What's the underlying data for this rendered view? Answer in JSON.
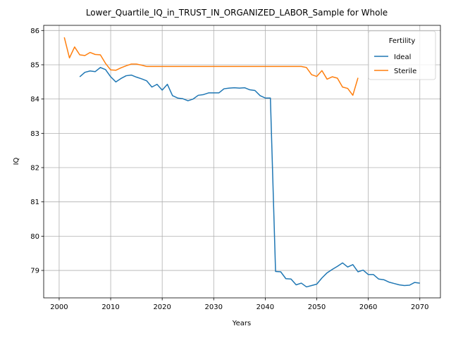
{
  "chart_data": {
    "type": "line",
    "title": "Lower_Quartile_IQ_in_TRUST_IN_ORGANIZED_LABOR_Sample for Whole",
    "xlabel": "Years",
    "ylabel": "IQ",
    "xlim": [
      1997,
      2074
    ],
    "ylim": [
      78.2,
      86.15
    ],
    "xticks": [
      2000,
      2010,
      2020,
      2030,
      2040,
      2050,
      2060,
      2070
    ],
    "yticks": [
      79,
      80,
      81,
      82,
      83,
      84,
      85,
      86
    ],
    "grid": true,
    "legend": {
      "title": "Fertility",
      "placement": "upper right"
    },
    "series": [
      {
        "name": "Ideal",
        "color": "#1f77b4",
        "x": [
          2004,
          2005,
          2006,
          2007,
          2008,
          2009,
          2010,
          2011,
          2012,
          2013,
          2014,
          2015,
          2016,
          2017,
          2018,
          2019,
          2020,
          2021,
          2022,
          2023,
          2024,
          2025,
          2026,
          2027,
          2028,
          2029,
          2030,
          2031,
          2032,
          2033,
          2034,
          2035,
          2036,
          2037,
          2038,
          2039,
          2040,
          2041,
          2042,
          2043,
          2044,
          2045,
          2046,
          2047,
          2048,
          2049,
          2050,
          2051,
          2052,
          2053,
          2054,
          2055,
          2056,
          2057,
          2058,
          2059,
          2060,
          2061,
          2062,
          2063,
          2064,
          2065,
          2066,
          2067,
          2068,
          2069,
          2070
        ],
        "y": [
          84.65,
          84.78,
          84.82,
          84.8,
          84.92,
          84.86,
          84.65,
          84.5,
          84.6,
          84.68,
          84.7,
          84.64,
          84.59,
          84.53,
          84.35,
          84.43,
          84.26,
          84.43,
          84.1,
          84.03,
          84.01,
          83.95,
          84.0,
          84.11,
          84.13,
          84.18,
          84.18,
          84.18,
          84.3,
          84.32,
          84.33,
          84.32,
          84.33,
          84.27,
          84.25,
          84.1,
          84.03,
          84.03,
          78.97,
          78.96,
          78.76,
          78.75,
          78.58,
          78.63,
          78.52,
          78.56,
          78.6,
          78.78,
          78.93,
          79.03,
          79.12,
          79.22,
          79.1,
          79.17,
          78.96,
          79.01,
          78.88,
          78.88,
          78.75,
          78.73,
          78.66,
          78.62,
          78.58,
          78.56,
          78.57,
          78.65,
          78.63
        ]
      },
      {
        "name": "Sterile",
        "color": "#ff7f0e",
        "x": [
          2001,
          2002,
          2003,
          2004,
          2005,
          2006,
          2007,
          2008,
          2009,
          2010,
          2011,
          2012,
          2013,
          2014,
          2015,
          2016,
          2017,
          2018,
          2019,
          2020,
          2021,
          2022,
          2023,
          2024,
          2025,
          2026,
          2027,
          2028,
          2029,
          2030,
          2031,
          2032,
          2033,
          2034,
          2035,
          2036,
          2037,
          2038,
          2039,
          2040,
          2041,
          2042,
          2043,
          2044,
          2045,
          2046,
          2047,
          2048,
          2049,
          2050,
          2051,
          2052,
          2053,
          2054,
          2055,
          2056,
          2057,
          2058
        ],
        "y": [
          85.8,
          85.2,
          85.52,
          85.29,
          85.27,
          85.36,
          85.3,
          85.29,
          85.04,
          84.85,
          84.84,
          84.91,
          84.97,
          85.02,
          85.02,
          84.99,
          84.95,
          84.95,
          84.95,
          84.95,
          84.95,
          84.95,
          84.95,
          84.95,
          84.95,
          84.95,
          84.95,
          84.95,
          84.95,
          84.95,
          84.95,
          84.95,
          84.95,
          84.95,
          84.95,
          84.95,
          84.95,
          84.95,
          84.95,
          84.95,
          84.95,
          84.95,
          84.95,
          84.95,
          84.95,
          84.95,
          84.95,
          84.92,
          84.71,
          84.66,
          84.83,
          84.58,
          84.65,
          84.61,
          84.35,
          84.31,
          84.11,
          84.62
        ]
      }
    ]
  }
}
